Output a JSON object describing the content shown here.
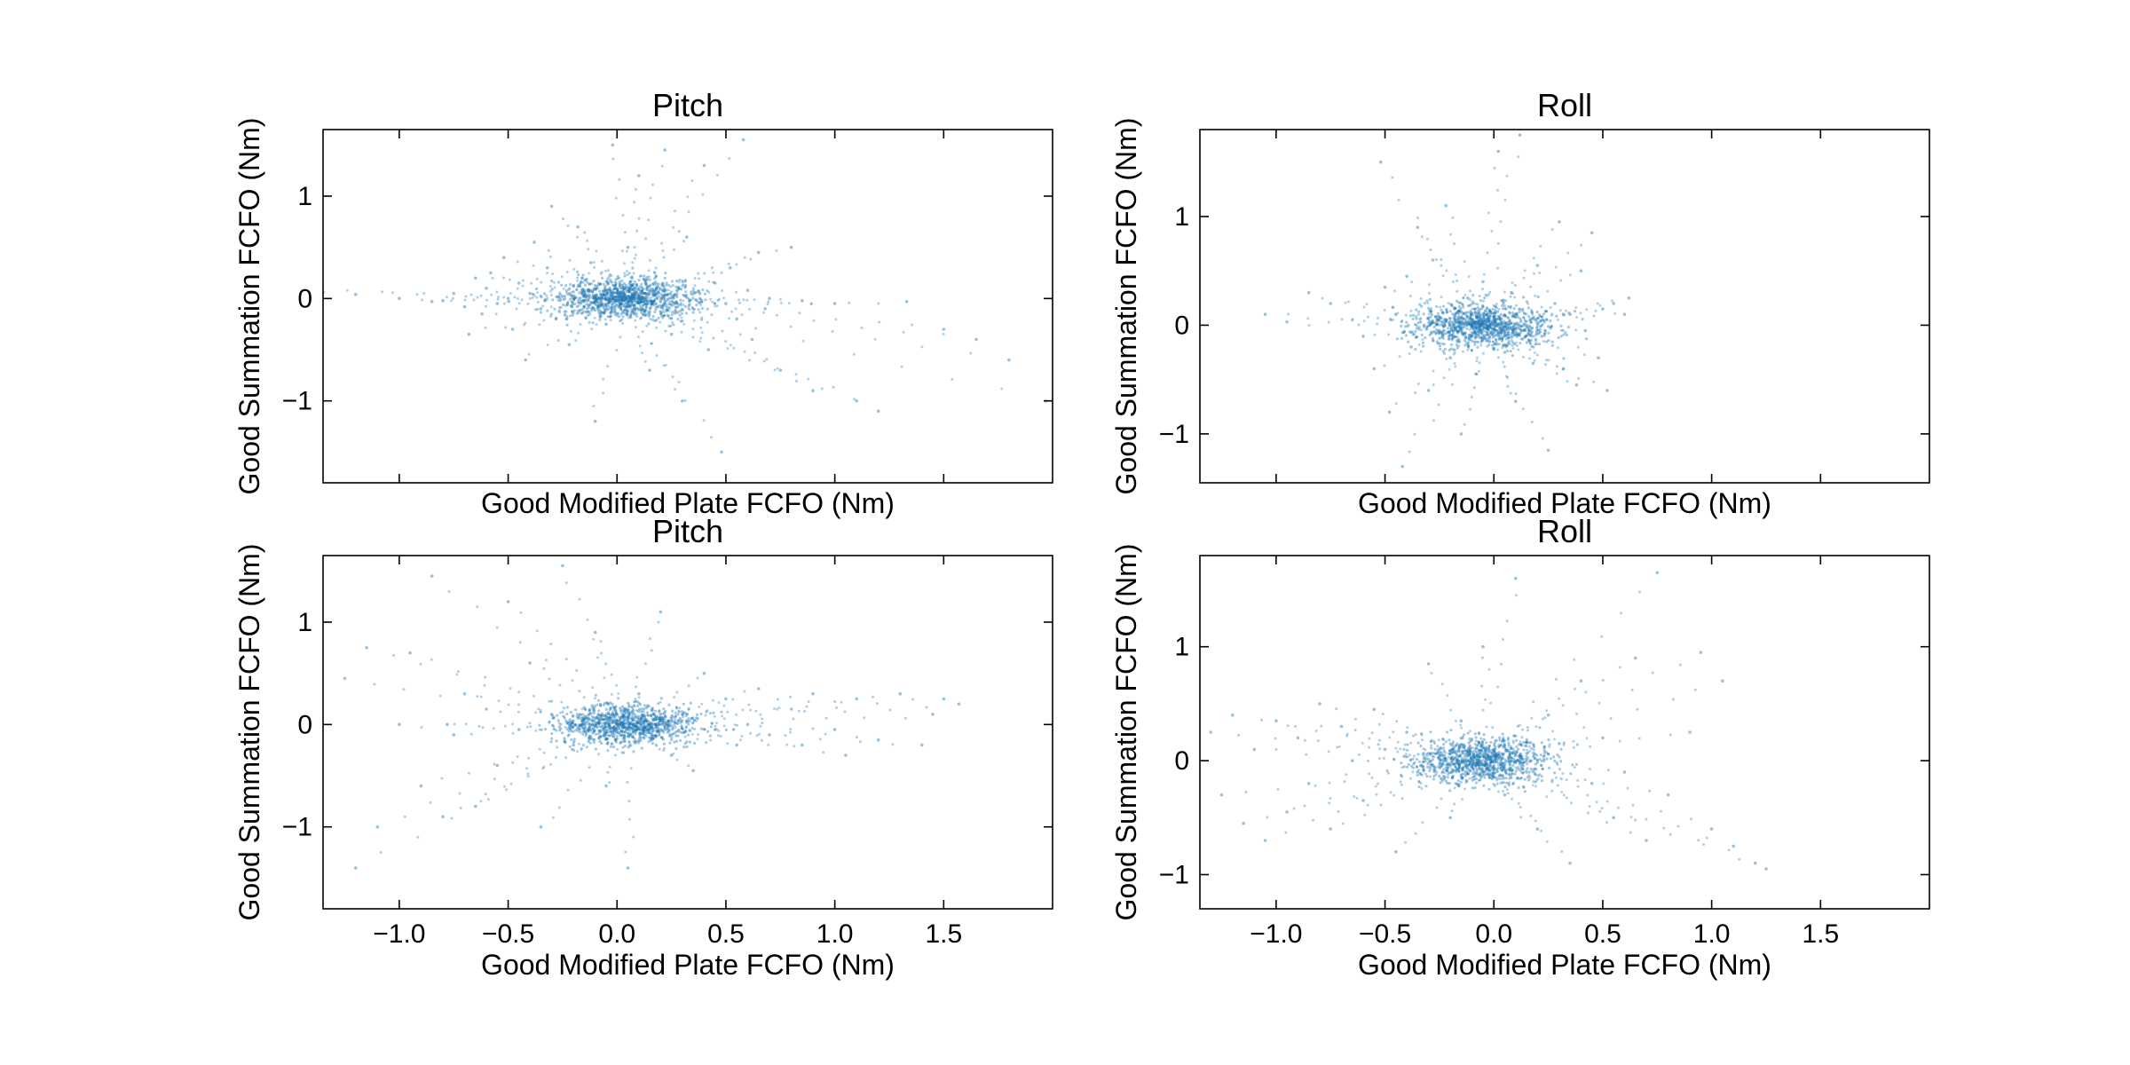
{
  "chart_data": [
    {
      "type": "scatter",
      "title": "Pitch",
      "xlabel": "Good Modified Plate FCFO (Nm)",
      "ylabel": "Good Summation FCFO (Nm)",
      "xlim": [
        -1.35,
        2.0
      ],
      "ylim": [
        -1.8,
        1.65
      ],
      "xticks": [
        -1.0,
        -0.5,
        0.0,
        0.5,
        1.0,
        1.5
      ],
      "xtick_labels": [
        "",
        "",
        "",
        "",
        "",
        ""
      ],
      "yticks": [
        -1,
        0,
        1
      ],
      "ytick_labels": [
        "−1",
        "0",
        "1"
      ],
      "point_color": "#1f77b4",
      "points": [
        [
          -1.35,
          0.06
        ],
        [
          -1.2,
          0.04
        ],
        [
          -1.0,
          0.0
        ],
        [
          -0.85,
          -0.03
        ],
        [
          -0.8,
          -0.02
        ],
        [
          -0.75,
          0.05
        ],
        [
          -0.7,
          -0.08
        ],
        [
          -0.68,
          -0.35
        ],
        [
          -0.65,
          0.2
        ],
        [
          -0.62,
          -0.15
        ],
        [
          -0.6,
          0.1
        ],
        [
          -0.58,
          0.25
        ],
        [
          -0.55,
          -0.05
        ],
        [
          -0.52,
          0.4
        ],
        [
          -0.5,
          0.0
        ],
        [
          -0.48,
          -0.3
        ],
        [
          -0.45,
          0.15
        ],
        [
          -0.42,
          -0.6
        ],
        [
          -0.4,
          0.05
        ],
        [
          -0.38,
          0.55
        ],
        [
          -0.35,
          -0.1
        ],
        [
          -0.32,
          0.3
        ],
        [
          -0.3,
          0.9
        ],
        [
          -0.28,
          -0.2
        ],
        [
          -0.25,
          0.02
        ],
        [
          -0.22,
          -0.45
        ],
        [
          -0.2,
          0.12
        ],
        [
          -0.18,
          0.7
        ],
        [
          -0.15,
          -0.08
        ],
        [
          -0.12,
          0.35
        ],
        [
          -0.1,
          -1.2
        ],
        [
          -0.08,
          0.0
        ],
        [
          -0.05,
          -0.25
        ],
        [
          -0.02,
          1.5
        ],
        [
          0.0,
          0.05
        ],
        [
          0.02,
          -0.05
        ],
        [
          0.05,
          0.5
        ],
        [
          0.08,
          -0.15
        ],
        [
          0.1,
          1.2
        ],
        [
          0.12,
          0.0
        ],
        [
          0.15,
          -0.7
        ],
        [
          0.18,
          0.22
        ],
        [
          0.2,
          -0.02
        ],
        [
          0.22,
          1.45
        ],
        [
          0.25,
          -0.35
        ],
        [
          0.28,
          0.1
        ],
        [
          0.3,
          -1.0
        ],
        [
          0.32,
          0.6
        ],
        [
          0.35,
          -0.1
        ],
        [
          0.38,
          0.05
        ],
        [
          0.4,
          1.3
        ],
        [
          0.42,
          -0.5
        ],
        [
          0.45,
          0.15
        ],
        [
          0.48,
          -1.5
        ],
        [
          0.5,
          -0.05
        ],
        [
          0.52,
          0.3
        ],
        [
          0.55,
          -0.2
        ],
        [
          0.58,
          1.55
        ],
        [
          0.6,
          0.08
        ],
        [
          0.62,
          -0.4
        ],
        [
          0.65,
          0.45
        ],
        [
          0.68,
          -0.1
        ],
        [
          0.7,
          0.0
        ],
        [
          0.75,
          -0.7
        ],
        [
          0.8,
          0.5
        ],
        [
          0.85,
          -0.02
        ],
        [
          0.9,
          -0.9
        ],
        [
          1.0,
          -0.05
        ],
        [
          1.1,
          -1.0
        ],
        [
          1.2,
          -1.1
        ],
        [
          1.33,
          -0.03
        ],
        [
          1.5,
          -0.3
        ],
        [
          1.65,
          -0.4
        ],
        [
          1.8,
          -0.6
        ],
        [
          1.97,
          -1.0
        ]
      ]
    },
    {
      "type": "scatter",
      "title": "Roll",
      "xlabel": "Good Modified Plate FCFO (Nm)",
      "ylabel": "Good Summation FCFO (Nm)",
      "xlim": [
        -1.35,
        2.0
      ],
      "ylim": [
        -1.45,
        1.8
      ],
      "xticks": [
        -1.0,
        -0.5,
        0.0,
        0.5,
        1.0,
        1.5
      ],
      "xtick_labels": [
        "",
        "",
        "",
        "",
        "",
        ""
      ],
      "yticks": [
        -1,
        0,
        1
      ],
      "ytick_labels": [
        "−1",
        "0",
        "1"
      ],
      "point_color": "#1f77b4",
      "points": [
        [
          -1.05,
          0.1
        ],
        [
          -0.95,
          0.03
        ],
        [
          -0.85,
          0.3
        ],
        [
          -0.75,
          0.2
        ],
        [
          -0.65,
          0.05
        ],
        [
          -0.6,
          -0.1
        ],
        [
          -0.55,
          -0.4
        ],
        [
          -0.52,
          1.5
        ],
        [
          -0.5,
          0.35
        ],
        [
          -0.48,
          -0.8
        ],
        [
          -0.45,
          0.1
        ],
        [
          -0.42,
          -1.3
        ],
        [
          -0.4,
          0.45
        ],
        [
          -0.38,
          -0.2
        ],
        [
          -0.35,
          0.9
        ],
        [
          -0.32,
          0.0
        ],
        [
          -0.3,
          -0.6
        ],
        [
          -0.28,
          0.6
        ],
        [
          -0.25,
          -0.05
        ],
        [
          -0.22,
          1.1
        ],
        [
          -0.2,
          -0.3
        ],
        [
          -0.18,
          0.15
        ],
        [
          -0.15,
          -1.0
        ],
        [
          -0.12,
          0.25
        ],
        [
          -0.1,
          0.0
        ],
        [
          -0.08,
          -0.45
        ],
        [
          -0.05,
          0.4
        ],
        [
          -0.02,
          -0.15
        ],
        [
          0.0,
          0.05
        ],
        [
          0.02,
          1.6
        ],
        [
          0.05,
          -0.25
        ],
        [
          0.08,
          0.3
        ],
        [
          0.1,
          -0.7
        ],
        [
          0.12,
          1.75
        ],
        [
          0.15,
          0.0
        ],
        [
          0.18,
          -0.35
        ],
        [
          0.2,
          0.55
        ],
        [
          0.22,
          -0.1
        ],
        [
          0.25,
          -1.15
        ],
        [
          0.28,
          0.2
        ],
        [
          0.3,
          0.95
        ],
        [
          0.32,
          -0.4
        ],
        [
          0.35,
          0.1
        ],
        [
          0.38,
          -0.55
        ],
        [
          0.4,
          0.5
        ],
        [
          0.42,
          -0.05
        ],
        [
          0.45,
          0.85
        ],
        [
          0.48,
          -0.3
        ],
        [
          0.5,
          0.15
        ],
        [
          0.52,
          -0.6
        ],
        [
          0.55,
          0.2
        ],
        [
          0.6,
          0.1
        ],
        [
          0.62,
          0.25
        ]
      ]
    },
    {
      "type": "scatter",
      "title": "Pitch",
      "xlabel": "Good Modified Plate FCFO (Nm)",
      "ylabel": "Good Summation FCFO (Nm)",
      "xlim": [
        -1.35,
        2.0
      ],
      "ylim": [
        -1.8,
        1.65
      ],
      "xticks": [
        -1.0,
        -0.5,
        0.0,
        0.5,
        1.0,
        1.5
      ],
      "xtick_labels": [
        "−1.0",
        "−0.5",
        "0.0",
        "0.5",
        "1.0",
        "1.5"
      ],
      "yticks": [
        -1,
        0,
        1
      ],
      "ytick_labels": [
        "−1",
        "0",
        "1"
      ],
      "point_color": "#1f77b4",
      "points": [
        [
          -1.25,
          0.45
        ],
        [
          -1.2,
          -1.4
        ],
        [
          -1.15,
          0.75
        ],
        [
          -1.1,
          -1.0
        ],
        [
          -1.0,
          0.0
        ],
        [
          -0.95,
          0.7
        ],
        [
          -0.9,
          -0.6
        ],
        [
          -0.85,
          1.45
        ],
        [
          -0.8,
          -0.9
        ],
        [
          -0.78,
          0.0
        ],
        [
          -0.75,
          -0.1
        ],
        [
          -0.7,
          0.3
        ],
        [
          -0.65,
          -0.8
        ],
        [
          -0.6,
          0.15
        ],
        [
          -0.55,
          -0.4
        ],
        [
          -0.5,
          1.2
        ],
        [
          -0.45,
          -0.05
        ],
        [
          -0.4,
          0.6
        ],
        [
          -0.35,
          -1.0
        ],
        [
          -0.3,
          0.1
        ],
        [
          -0.25,
          1.55
        ],
        [
          -0.2,
          -0.2
        ],
        [
          -0.15,
          0.05
        ],
        [
          -0.1,
          0.9
        ],
        [
          -0.05,
          -0.6
        ],
        [
          0.0,
          0.0
        ],
        [
          0.05,
          -1.4
        ],
        [
          0.1,
          0.3
        ],
        [
          0.15,
          -0.05
        ],
        [
          0.2,
          1.1
        ],
        [
          0.25,
          -0.3
        ],
        [
          0.3,
          0.1
        ],
        [
          0.35,
          -0.45
        ],
        [
          0.4,
          0.5
        ],
        [
          0.45,
          -0.05
        ],
        [
          0.5,
          0.25
        ],
        [
          0.55,
          -0.2
        ],
        [
          0.6,
          0.0
        ],
        [
          0.65,
          0.35
        ],
        [
          0.7,
          -0.1
        ],
        [
          0.8,
          0.15
        ],
        [
          0.85,
          -0.2
        ],
        [
          0.9,
          0.3
        ],
        [
          1.0,
          -0.05
        ],
        [
          1.05,
          -0.3
        ],
        [
          1.1,
          0.25
        ],
        [
          1.2,
          -0.15
        ],
        [
          1.3,
          0.3
        ],
        [
          1.4,
          -0.2
        ],
        [
          1.5,
          0.25
        ],
        [
          1.57,
          0.2
        ],
        [
          1.45,
          0.1
        ]
      ]
    },
    {
      "type": "scatter",
      "title": "Roll",
      "xlabel": "Good Modified Plate FCFO (Nm)",
      "ylabel": "Good Summation FCFO (Nm)",
      "xlim": [
        -1.35,
        2.0
      ],
      "ylim": [
        -1.3,
        1.8
      ],
      "xticks": [
        -1.0,
        -0.5,
        0.0,
        0.5,
        1.0,
        1.5
      ],
      "xtick_labels": [
        "−1.0",
        "−0.5",
        "0.0",
        "0.5",
        "1.0",
        "1.5"
      ],
      "yticks": [
        -1,
        0,
        1
      ],
      "ytick_labels": [
        "−1",
        "0",
        "1"
      ],
      "point_color": "#1f77b4",
      "points": [
        [
          -1.3,
          0.25
        ],
        [
          -1.25,
          -0.3
        ],
        [
          -1.2,
          0.4
        ],
        [
          -1.15,
          -0.55
        ],
        [
          -1.1,
          0.1
        ],
        [
          -1.05,
          -0.7
        ],
        [
          -1.0,
          0.35
        ],
        [
          -0.95,
          -0.45
        ],
        [
          -0.9,
          0.2
        ],
        [
          -0.85,
          -0.2
        ],
        [
          -0.8,
          0.5
        ],
        [
          -0.75,
          -0.6
        ],
        [
          -0.7,
          0.3
        ],
        [
          -0.65,
          0.0
        ],
        [
          -0.6,
          -0.35
        ],
        [
          -0.55,
          0.45
        ],
        [
          -0.5,
          0.1
        ],
        [
          -0.45,
          -0.8
        ],
        [
          -0.4,
          0.25
        ],
        [
          -0.35,
          -0.1
        ],
        [
          -0.3,
          0.85
        ],
        [
          -0.25,
          0.05
        ],
        [
          -0.2,
          -0.5
        ],
        [
          -0.15,
          0.35
        ],
        [
          -0.1,
          -0.05
        ],
        [
          -0.05,
          1.0
        ],
        [
          0.0,
          0.1
        ],
        [
          0.05,
          -0.3
        ],
        [
          0.1,
          1.6
        ],
        [
          0.15,
          0.0
        ],
        [
          0.2,
          -0.6
        ],
        [
          0.25,
          0.4
        ],
        [
          0.3,
          0.15
        ],
        [
          0.35,
          -0.9
        ],
        [
          0.4,
          0.7
        ],
        [
          0.45,
          -0.2
        ],
        [
          0.5,
          0.2
        ],
        [
          0.55,
          -0.5
        ],
        [
          0.6,
          -0.1
        ],
        [
          0.65,
          0.9
        ],
        [
          0.7,
          -0.7
        ],
        [
          0.75,
          1.65
        ],
        [
          0.8,
          -0.3
        ],
        [
          0.9,
          0.25
        ],
        [
          0.95,
          0.95
        ],
        [
          1.0,
          -0.6
        ],
        [
          1.05,
          0.7
        ],
        [
          1.1,
          -0.75
        ],
        [
          1.2,
          -0.9
        ],
        [
          1.25,
          -0.95
        ]
      ]
    }
  ]
}
